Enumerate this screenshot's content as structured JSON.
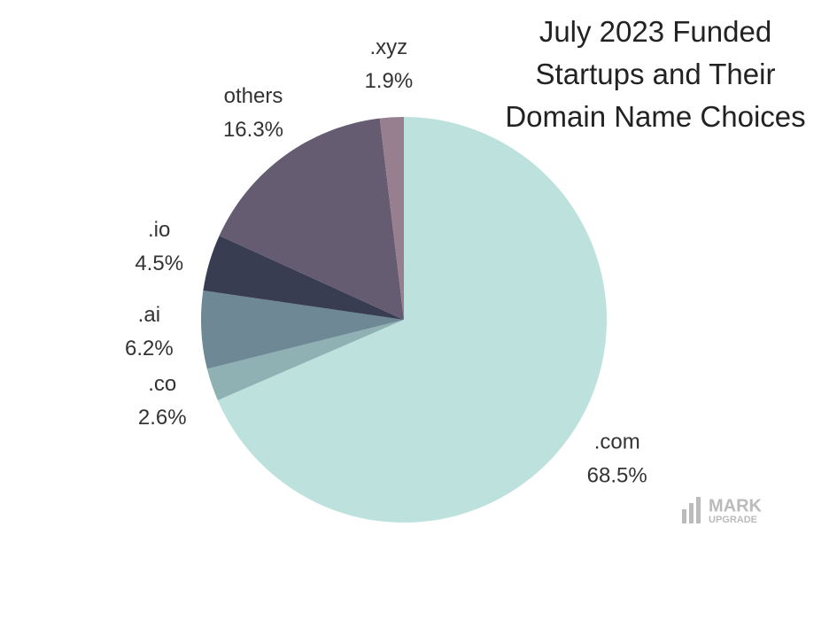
{
  "chart_data": {
    "type": "pie",
    "title": "July 2023 Funded Startups and Their Domain Name Choices",
    "categories": [
      ".com",
      ".co",
      ".ai",
      ".io",
      "others",
      ".xyz"
    ],
    "values": [
      68.5,
      2.6,
      6.2,
      4.5,
      16.3,
      1.9
    ],
    "value_labels": [
      "68.5%",
      "2.6%",
      "6.2%",
      "4.5%",
      "16.3%",
      "1.9%"
    ],
    "colors": [
      "#bde2de",
      "#8fb1b4",
      "#6e8896",
      "#383d52",
      "#655c72",
      "#977f8f"
    ],
    "logo": {
      "line1": "MARK",
      "line2": "UPGRADE"
    }
  }
}
